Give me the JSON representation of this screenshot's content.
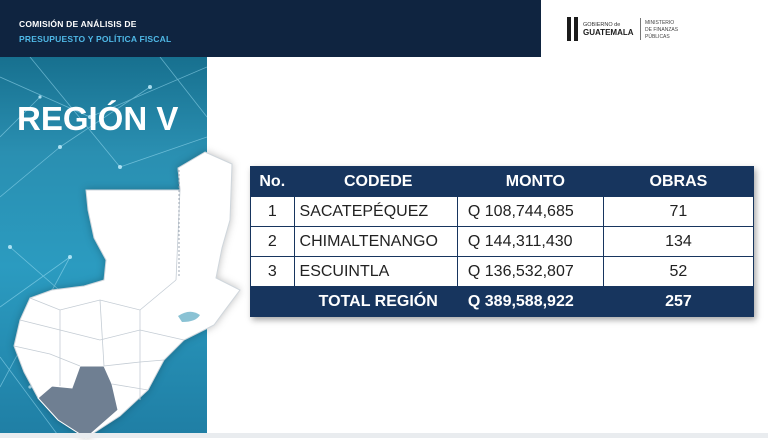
{
  "header": {
    "line1": "COMISIÓN DE ANÁLISIS DE",
    "line2": "PRESUPUESTO Y POLÍTICA FISCAL"
  },
  "logo": {
    "gob_line1": "GOBIERNO de",
    "gob_line2": "GUATEMALA",
    "min_line1": "MINISTERIO",
    "min_line2": "DE FINANZAS",
    "min_line3": "PÚBLICAS"
  },
  "region_title": "REGIÓN V",
  "table": {
    "headers": [
      "No.",
      "CODEDE",
      "MONTO",
      "OBRAS"
    ],
    "rows": [
      {
        "no": "1",
        "codede": "SACATEPÉQUEZ",
        "monto": "Q  108,744,685",
        "obras": "71"
      },
      {
        "no": "2",
        "codede": "CHIMALTENANGO",
        "monto": "Q  144,311,430",
        "obras": "134"
      },
      {
        "no": "3",
        "codede": "ESCUINTLA",
        "monto": "Q  136,532,807",
        "obras": "52"
      }
    ],
    "total": {
      "label": "TOTAL REGIÓN",
      "monto": "Q  389,588,922",
      "obras": "257"
    }
  },
  "colors": {
    "navy": "#0f2440",
    "table_header": "#17355e",
    "accent_blue": "#4fb8e6",
    "panel_teal": "#2a8fb1"
  }
}
